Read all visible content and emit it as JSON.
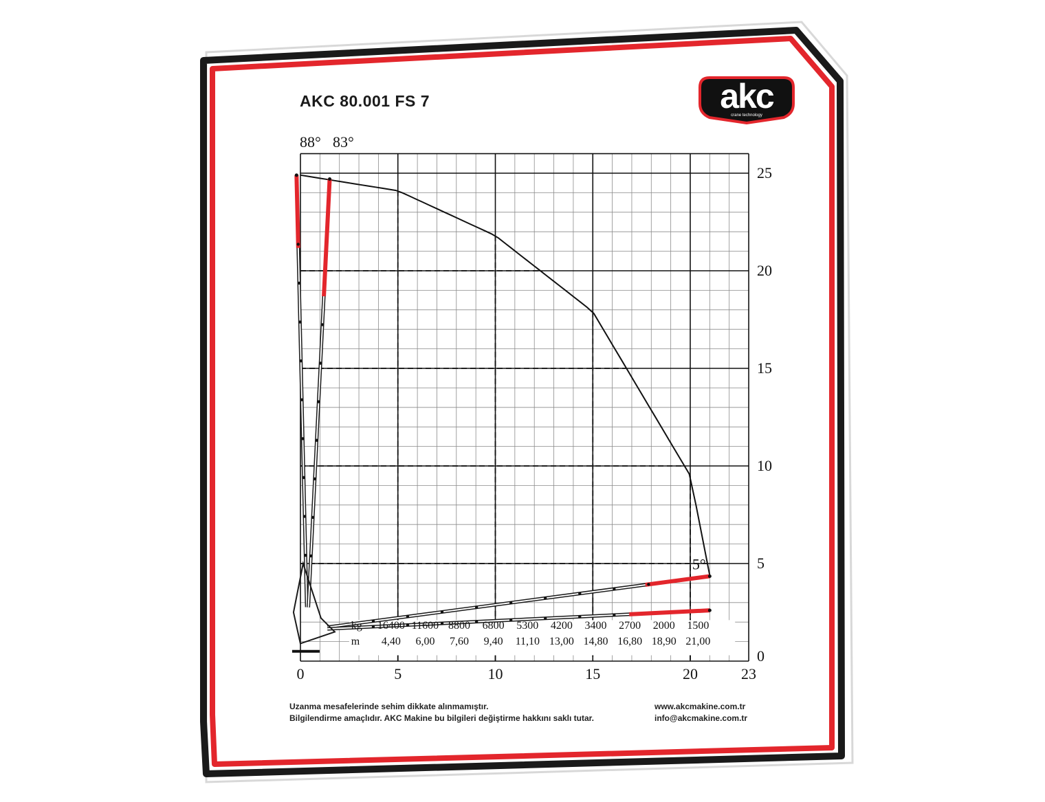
{
  "brand": {
    "logo_text": "akc",
    "logo_subtext": "crane technology",
    "colors": {
      "red": "#e3262c",
      "black": "#1a1a1a",
      "logo_bg": "#111111"
    }
  },
  "title": "AKC 80.001 FS 7",
  "angles": {
    "max_high": "88°",
    "max_alt": "83°",
    "min": "5°"
  },
  "chart_data": {
    "type": "line",
    "x_axis": {
      "ticks": [
        "0",
        "5",
        "10",
        "15",
        "20",
        "23"
      ],
      "range": [
        0,
        23
      ]
    },
    "y_axis": {
      "ticks": [
        "0",
        "5",
        "10",
        "15",
        "20",
        "25"
      ],
      "range": [
        0,
        26
      ]
    },
    "grid": true,
    "max_height_m": 24.9,
    "max_reach_m": 21.0,
    "envelope": [
      [
        0,
        24.9
      ],
      [
        5,
        24.1
      ],
      [
        10,
        21.8
      ],
      [
        15,
        17.9
      ],
      [
        20,
        9.5
      ],
      [
        21,
        4.4
      ]
    ],
    "load_table": {
      "kg_label": "kg",
      "m_label": "m",
      "kg": [
        "16400",
        "11600",
        "8800",
        "6800",
        "5300",
        "4200",
        "3400",
        "2700",
        "2000",
        "1500"
      ],
      "m": [
        "4,40",
        "6,00",
        "7,60",
        "9,40",
        "11,10",
        "13,00",
        "14,80",
        "16,80",
        "18,90",
        "21,00"
      ]
    }
  },
  "footer": {
    "note1": "Uzanma mesafelerinde sehim dikkate alınmamıştır.",
    "note2": "Bilgilendirme amaçlıdır. AKC Makine bu bilgileri değiştirme hakkını saklı tutar.",
    "website": "www.akcmakine.com.tr",
    "email": "info@akcmakine.com.tr"
  }
}
